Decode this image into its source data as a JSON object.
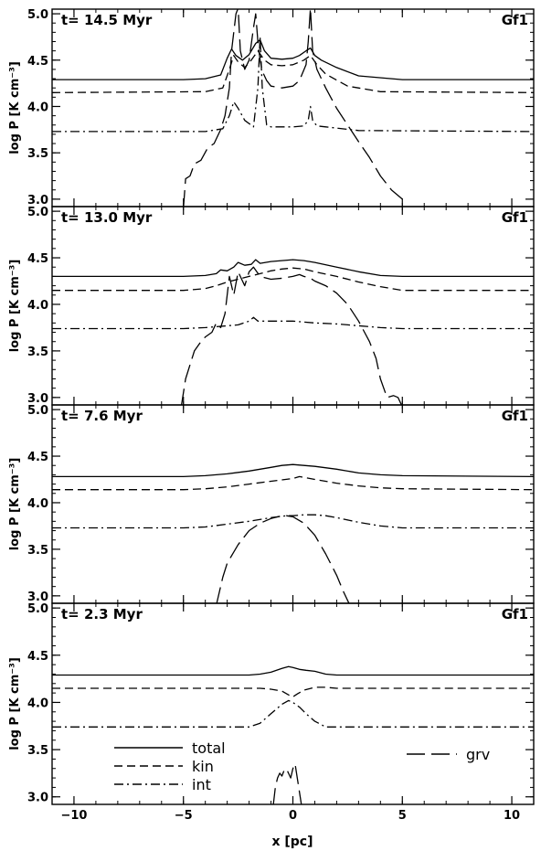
{
  "figure": {
    "x_axis_label": "x [pc]",
    "y_axis_label": "log P [K cm⁻³]",
    "legend": [
      {
        "key": "total",
        "label": "total",
        "dash": "solid"
      },
      {
        "key": "kin",
        "label": "kin",
        "dash": "dashed"
      },
      {
        "key": "int",
        "label": "int",
        "dash": "dashdot"
      },
      {
        "key": "grv",
        "label": "grv",
        "dash": "longdash"
      }
    ]
  },
  "chart_data": [
    {
      "type": "line",
      "time_label": "t=  14.5 Myr",
      "model_label": "Gf1",
      "xlim": [
        -11,
        11
      ],
      "ylim": [
        2.92,
        5.05
      ],
      "xticks": [
        -10,
        -5,
        0,
        5,
        10
      ],
      "yticks": [
        3.0,
        3.5,
        4.0,
        4.5,
        5.0
      ],
      "series": [
        {
          "key": "total",
          "x": [
            -11,
            -5,
            -4,
            -3.3,
            -3,
            -2.8,
            -2.6,
            -2.3,
            -2,
            -1.7,
            -1.5,
            -1.3,
            -1,
            -0.5,
            0,
            0.3,
            0.6,
            0.8,
            1,
            1.3,
            2,
            3,
            5,
            11
          ],
          "y": [
            4.29,
            4.29,
            4.3,
            4.34,
            4.52,
            4.62,
            4.55,
            4.5,
            4.56,
            4.68,
            4.72,
            4.6,
            4.52,
            4.51,
            4.52,
            4.55,
            4.6,
            4.63,
            4.55,
            4.5,
            4.42,
            4.33,
            4.29,
            4.29
          ]
        },
        {
          "key": "kin",
          "x": [
            -11,
            -4,
            -3.2,
            -2.9,
            -2.7,
            -2.5,
            -2.2,
            -1.9,
            -1.6,
            -1.3,
            -1,
            -0.5,
            0,
            0.5,
            0.8,
            1.1,
            1.5,
            2.5,
            4,
            11
          ],
          "y": [
            4.15,
            4.16,
            4.2,
            4.4,
            4.55,
            4.48,
            4.42,
            4.5,
            4.6,
            4.5,
            4.45,
            4.44,
            4.45,
            4.5,
            4.55,
            4.45,
            4.35,
            4.22,
            4.16,
            4.15
          ]
        },
        {
          "key": "int",
          "x": [
            -11,
            -4,
            -3.2,
            -2.9,
            -2.7,
            -2.5,
            -2.2,
            -1.8,
            -1.6,
            -1.5,
            -1.4,
            -1.2,
            -1,
            0,
            0.5,
            0.7,
            0.8,
            0.9,
            1.1,
            1.5,
            3,
            11
          ],
          "y": [
            3.73,
            3.73,
            3.76,
            3.9,
            4.05,
            3.98,
            3.85,
            3.78,
            4.2,
            4.75,
            4.2,
            3.8,
            3.78,
            3.78,
            3.79,
            3.85,
            4.0,
            3.85,
            3.79,
            3.78,
            3.74,
            3.73
          ]
        },
        {
          "key": "grv",
          "x": [
            -5,
            -4.9,
            -4.7,
            -4.5,
            -4.2,
            -3.9,
            -3.6,
            -3.3,
            -3.1,
            -2.9,
            -2.8,
            -2.6,
            -2.5,
            -2.4,
            -2.2,
            -2.0,
            -1.8,
            -1.7,
            -1.6,
            -1.5,
            -1.4,
            -1.2,
            -1.0,
            -0.5,
            0,
            0.3,
            0.6,
            0.7,
            0.8,
            0.9,
            1.1,
            1.5,
            2.0,
            2.5,
            3.0,
            3.5,
            4.0,
            4.5,
            5.0
          ],
          "y": [
            2.9,
            3.22,
            3.25,
            3.38,
            3.42,
            3.55,
            3.6,
            3.75,
            3.9,
            4.2,
            4.6,
            5.0,
            5.06,
            4.6,
            4.4,
            4.5,
            4.85,
            5.0,
            4.7,
            4.5,
            4.38,
            4.28,
            4.22,
            4.2,
            4.22,
            4.28,
            4.45,
            4.7,
            5.06,
            4.6,
            4.4,
            4.2,
            3.98,
            3.8,
            3.62,
            3.45,
            3.25,
            3.1,
            3.0
          ]
        }
      ]
    },
    {
      "type": "line",
      "time_label": "t=  13.0 Myr",
      "model_label": "Gf1",
      "xlim": [
        -11,
        11
      ],
      "ylim": [
        2.92,
        5.05
      ],
      "xticks": [
        -10,
        -5,
        0,
        5,
        10
      ],
      "yticks": [
        3.0,
        3.5,
        4.0,
        4.5,
        5.0
      ],
      "series": [
        {
          "key": "total",
          "x": [
            -11,
            -5,
            -4,
            -3.5,
            -3.3,
            -3,
            -2.7,
            -2.5,
            -2.2,
            -1.9,
            -1.7,
            -1.5,
            -1,
            -0.5,
            0,
            0.5,
            1,
            2,
            3,
            4,
            5,
            11
          ],
          "y": [
            4.3,
            4.3,
            4.31,
            4.33,
            4.37,
            4.36,
            4.4,
            4.45,
            4.42,
            4.43,
            4.48,
            4.44,
            4.46,
            4.47,
            4.48,
            4.47,
            4.45,
            4.4,
            4.35,
            4.31,
            4.3,
            4.3
          ]
        },
        {
          "key": "kin",
          "x": [
            -11,
            -5,
            -4,
            -3.5,
            -3,
            -2.5,
            -2,
            -1.5,
            -1,
            -0.5,
            0,
            0.5,
            1,
            2,
            3,
            4,
            5,
            11
          ],
          "y": [
            4.15,
            4.15,
            4.17,
            4.2,
            4.24,
            4.27,
            4.3,
            4.33,
            4.36,
            4.38,
            4.39,
            4.38,
            4.35,
            4.3,
            4.24,
            4.19,
            4.15,
            4.15
          ]
        },
        {
          "key": "int",
          "x": [
            -11,
            -5,
            -4,
            -3,
            -2.5,
            -2,
            -1.8,
            -1.6,
            -1.2,
            -0.5,
            0,
            1,
            2,
            3,
            4,
            5,
            11
          ],
          "y": [
            3.74,
            3.74,
            3.75,
            3.77,
            3.78,
            3.82,
            3.86,
            3.82,
            3.82,
            3.82,
            3.82,
            3.8,
            3.79,
            3.77,
            3.75,
            3.74,
            3.74
          ]
        },
        {
          "key": "grv",
          "x": [
            -5.1,
            -4.9,
            -4.7,
            -4.5,
            -4.2,
            -4.0,
            -3.7,
            -3.5,
            -3.3,
            -3.1,
            -2.9,
            -2.7,
            -2.5,
            -2.2,
            -2.0,
            -1.8,
            -1.5,
            -1.0,
            -0.5,
            0,
            0.3,
            0.5,
            0.8,
            1.0,
            1.5,
            2.0,
            2.5,
            3.0,
            3.5,
            3.8,
            4.0,
            4.3,
            4.6,
            4.8,
            5.0
          ],
          "y": [
            2.9,
            3.2,
            3.35,
            3.5,
            3.6,
            3.65,
            3.7,
            3.8,
            3.75,
            3.9,
            4.3,
            4.1,
            4.35,
            4.2,
            4.35,
            4.4,
            4.3,
            4.27,
            4.28,
            4.3,
            4.32,
            4.3,
            4.28,
            4.25,
            4.2,
            4.12,
            4.0,
            3.82,
            3.6,
            3.42,
            3.2,
            3.0,
            3.02,
            3.0,
            2.9
          ]
        }
      ]
    },
    {
      "type": "line",
      "time_label": "t=   7.6 Myr",
      "model_label": "Gf1",
      "xlim": [
        -11,
        11
      ],
      "ylim": [
        2.92,
        5.05
      ],
      "xticks": [
        -10,
        -5,
        0,
        5,
        10
      ],
      "yticks": [
        3.0,
        3.5,
        4.0,
        4.5,
        5.0
      ],
      "series": [
        {
          "key": "total",
          "x": [
            -11,
            -5,
            -4,
            -3,
            -2,
            -1,
            -0.5,
            0,
            0.5,
            1,
            2,
            3,
            4,
            5,
            11
          ],
          "y": [
            4.28,
            4.28,
            4.29,
            4.31,
            4.34,
            4.38,
            4.4,
            4.41,
            4.4,
            4.39,
            4.36,
            4.32,
            4.3,
            4.29,
            4.28
          ]
        },
        {
          "key": "kin",
          "x": [
            -11,
            -5,
            -4,
            -3,
            -2,
            -1,
            0,
            0.3,
            1,
            2,
            3,
            4,
            5,
            11
          ],
          "y": [
            4.14,
            4.14,
            4.15,
            4.17,
            4.2,
            4.23,
            4.26,
            4.28,
            4.25,
            4.21,
            4.18,
            4.16,
            4.15,
            4.14
          ]
        },
        {
          "key": "int",
          "x": [
            -11,
            -5,
            -4,
            -3,
            -2,
            -1,
            -0.3,
            0,
            0.5,
            1,
            1.5,
            2,
            3,
            4,
            5,
            11
          ],
          "y": [
            3.73,
            3.73,
            3.74,
            3.77,
            3.8,
            3.84,
            3.86,
            3.86,
            3.87,
            3.87,
            3.86,
            3.84,
            3.79,
            3.75,
            3.73,
            3.73
          ]
        },
        {
          "key": "grv",
          "x": [
            -3.5,
            -3.2,
            -3.0,
            -2.5,
            -2.0,
            -1.5,
            -1.0,
            -0.5,
            -0.3,
            0,
            0.5,
            1.0,
            1.5,
            2.0,
            2.3,
            2.6
          ],
          "y": [
            2.9,
            3.2,
            3.35,
            3.55,
            3.7,
            3.78,
            3.83,
            3.86,
            3.86,
            3.85,
            3.78,
            3.65,
            3.45,
            3.22,
            3.05,
            2.9
          ]
        }
      ]
    },
    {
      "type": "line",
      "time_label": "t=   2.3 Myr",
      "model_label": "Gf1",
      "xlim": [
        -11,
        11
      ],
      "ylim": [
        2.92,
        5.05
      ],
      "xticks": [
        -10,
        -5,
        0,
        5,
        10
      ],
      "yticks": [
        3.0,
        3.5,
        4.0,
        4.5,
        5.0
      ],
      "series": [
        {
          "key": "total",
          "x": [
            -11,
            -2,
            -1.5,
            -1,
            -0.5,
            -0.2,
            0,
            0.3,
            0.6,
            1,
            1.5,
            2,
            11
          ],
          "y": [
            4.29,
            4.29,
            4.3,
            4.32,
            4.36,
            4.38,
            4.37,
            4.35,
            4.34,
            4.33,
            4.3,
            4.29,
            4.29
          ]
        },
        {
          "key": "kin",
          "x": [
            -11,
            -1.5,
            -1,
            -0.5,
            -0.2,
            0,
            0.2,
            0.5,
            1,
            1.5,
            2,
            11
          ],
          "y": [
            4.15,
            4.15,
            4.14,
            4.12,
            4.08,
            4.06,
            4.09,
            4.13,
            4.16,
            4.16,
            4.15,
            4.15
          ]
        },
        {
          "key": "int",
          "x": [
            -11,
            -2,
            -1.5,
            -1,
            -0.5,
            -0.2,
            0,
            0.3,
            0.6,
            1,
            1.5,
            2,
            11
          ],
          "y": [
            3.74,
            3.74,
            3.78,
            3.88,
            3.98,
            4.02,
            4.0,
            3.95,
            3.88,
            3.8,
            3.74,
            3.74,
            3.74
          ]
        },
        {
          "key": "grv",
          "x": [
            -0.9,
            -0.8,
            -0.7,
            -0.6,
            -0.5,
            -0.4,
            -0.3,
            -0.2,
            -0.1,
            0,
            0.1,
            0.2,
            0.3,
            0.4
          ],
          "y": [
            2.9,
            3.1,
            3.2,
            3.25,
            3.22,
            3.28,
            3.3,
            3.25,
            3.2,
            3.3,
            3.35,
            3.2,
            3.05,
            2.9
          ]
        }
      ]
    }
  ]
}
